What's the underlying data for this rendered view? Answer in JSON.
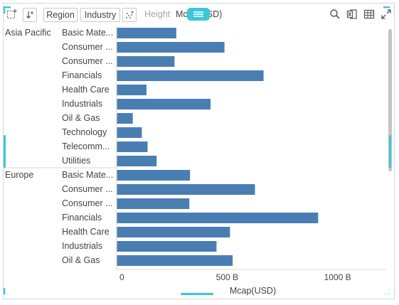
{
  "toolbar": {
    "region_label": "Region",
    "industry_label": "Industry",
    "height_label": "Height",
    "measure_label": "Mcap(USD)"
  },
  "colors": {
    "bar": "#4a7eb3",
    "accent": "#3cc6d6",
    "divider": "#d9d9d9",
    "text": "#444444"
  },
  "chart_data": {
    "type": "bar",
    "orientation": "horizontal",
    "xlabel": "Mcap(USD)",
    "xlim": [
      0,
      1220
    ],
    "x_ticks": [
      {
        "value": 0,
        "label": "0"
      },
      {
        "value": 500,
        "label": "500 B"
      },
      {
        "value": 1000,
        "label": "1000 B"
      }
    ],
    "groups": [
      {
        "name": "Asia Pacific",
        "categories": [
          {
            "label": "Basic Mate...",
            "value": 270
          },
          {
            "label": "Consumer ...",
            "value": 488
          },
          {
            "label": "Consumer ...",
            "value": 262
          },
          {
            "label": "Financials",
            "value": 665
          },
          {
            "label": "Health Care",
            "value": 135
          },
          {
            "label": "Industrials",
            "value": 425
          },
          {
            "label": "Oil & Gas",
            "value": 73
          },
          {
            "label": "Technology",
            "value": 114
          },
          {
            "label": "Telecomm...",
            "value": 140
          },
          {
            "label": "Utilities",
            "value": 181
          }
        ]
      },
      {
        "name": "Europe",
        "categories": [
          {
            "label": "Basic Mate...",
            "value": 332
          },
          {
            "label": "Consumer ...",
            "value": 626
          },
          {
            "label": "Consumer ...",
            "value": 329
          },
          {
            "label": "Financials",
            "value": 912
          },
          {
            "label": "Health Care",
            "value": 513
          },
          {
            "label": "Industrials",
            "value": 452
          },
          {
            "label": "Oil & Gas",
            "value": 525
          }
        ]
      }
    ]
  }
}
